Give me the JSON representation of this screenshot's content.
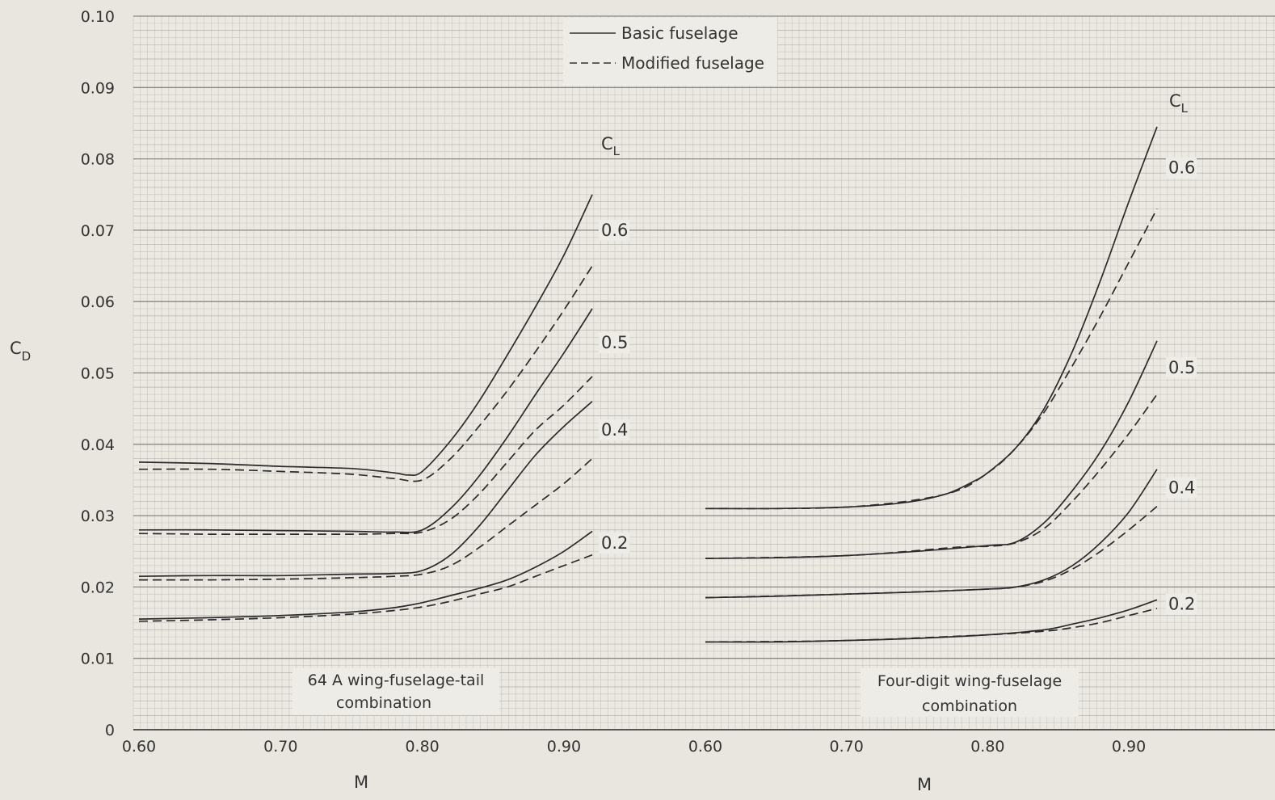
{
  "chart_data": {
    "type": "line",
    "y_axis": {
      "label": "C",
      "label_sub": "D",
      "ylim": [
        0,
        0.1
      ],
      "ticks": [
        "0",
        "0.01",
        "0.02",
        "0.03",
        "0.04",
        "0.05",
        "0.06",
        "0.07",
        "0.08",
        "0.09",
        "0.10"
      ]
    },
    "legend": {
      "placement": "top-center",
      "entries": [
        {
          "label": "Basic  fuselage",
          "style": "solid"
        },
        {
          "label": "Modified  fuselage",
          "style": "dashed"
        }
      ]
    },
    "grid": true,
    "panels": [
      {
        "caption_line1": "64 A  wing-fuselage-tail",
        "caption_line2": "combination",
        "xlabel": "M",
        "xlim": [
          0.6,
          0.92
        ],
        "x_ticks": [
          "0.60",
          "0.70",
          "0.80",
          "0.90"
        ],
        "cl_header": "C",
        "cl_header_sub": "L",
        "series": [
          {
            "cl": "0.6",
            "style": "solid",
            "points": [
              [
                0.6,
                0.0375
              ],
              [
                0.65,
                0.0373
              ],
              [
                0.7,
                0.0369
              ],
              [
                0.75,
                0.0366
              ],
              [
                0.78,
                0.036
              ],
              [
                0.79,
                0.0357
              ],
              [
                0.8,
                0.0362
              ],
              [
                0.82,
                0.0405
              ],
              [
                0.84,
                0.046
              ],
              [
                0.86,
                0.0525
              ],
              [
                0.88,
                0.0593
              ],
              [
                0.9,
                0.0665
              ],
              [
                0.92,
                0.075
              ]
            ]
          },
          {
            "cl": "0.6",
            "style": "dashed",
            "points": [
              [
                0.6,
                0.0365
              ],
              [
                0.65,
                0.0365
              ],
              [
                0.7,
                0.0362
              ],
              [
                0.75,
                0.0358
              ],
              [
                0.78,
                0.0352
              ],
              [
                0.8,
                0.035
              ],
              [
                0.82,
                0.038
              ],
              [
                0.84,
                0.0425
              ],
              [
                0.86,
                0.0475
              ],
              [
                0.88,
                0.053
              ],
              [
                0.9,
                0.0588
              ],
              [
                0.92,
                0.065
              ]
            ]
          },
          {
            "cl": "0.5",
            "style": "solid",
            "points": [
              [
                0.6,
                0.028
              ],
              [
                0.65,
                0.028
              ],
              [
                0.7,
                0.0279
              ],
              [
                0.75,
                0.0278
              ],
              [
                0.78,
                0.0277
              ],
              [
                0.8,
                0.028
              ],
              [
                0.82,
                0.031
              ],
              [
                0.84,
                0.0355
              ],
              [
                0.86,
                0.041
              ],
              [
                0.88,
                0.047
              ],
              [
                0.9,
                0.0528
              ],
              [
                0.92,
                0.059
              ]
            ]
          },
          {
            "cl": "0.5",
            "style": "dashed",
            "points": [
              [
                0.6,
                0.0275
              ],
              [
                0.65,
                0.0274
              ],
              [
                0.7,
                0.0274
              ],
              [
                0.75,
                0.0274
              ],
              [
                0.78,
                0.0275
              ],
              [
                0.8,
                0.0277
              ],
              [
                0.82,
                0.0295
              ],
              [
                0.84,
                0.033
              ],
              [
                0.86,
                0.0375
              ],
              [
                0.88,
                0.042
              ],
              [
                0.9,
                0.0455
              ],
              [
                0.92,
                0.0495
              ]
            ]
          },
          {
            "cl": "0.4",
            "style": "solid",
            "points": [
              [
                0.6,
                0.0215
              ],
              [
                0.65,
                0.0216
              ],
              [
                0.7,
                0.0216
              ],
              [
                0.75,
                0.0218
              ],
              [
                0.78,
                0.0219
              ],
              [
                0.8,
                0.0223
              ],
              [
                0.82,
                0.0245
              ],
              [
                0.84,
                0.0285
              ],
              [
                0.86,
                0.0335
              ],
              [
                0.88,
                0.0385
              ],
              [
                0.9,
                0.0425
              ],
              [
                0.92,
                0.046
              ]
            ]
          },
          {
            "cl": "0.4",
            "style": "dashed",
            "points": [
              [
                0.6,
                0.021
              ],
              [
                0.65,
                0.021
              ],
              [
                0.7,
                0.0211
              ],
              [
                0.75,
                0.0213
              ],
              [
                0.78,
                0.0215
              ],
              [
                0.8,
                0.0218
              ],
              [
                0.82,
                0.023
              ],
              [
                0.84,
                0.0255
              ],
              [
                0.86,
                0.0285
              ],
              [
                0.88,
                0.0315
              ],
              [
                0.9,
                0.0345
              ],
              [
                0.92,
                0.038
              ]
            ]
          },
          {
            "cl": "0.2",
            "style": "solid",
            "points": [
              [
                0.6,
                0.0155
              ],
              [
                0.65,
                0.0157
              ],
              [
                0.7,
                0.016
              ],
              [
                0.75,
                0.0165
              ],
              [
                0.78,
                0.0171
              ],
              [
                0.8,
                0.0178
              ],
              [
                0.82,
                0.0188
              ],
              [
                0.84,
                0.0198
              ],
              [
                0.86,
                0.021
              ],
              [
                0.88,
                0.0228
              ],
              [
                0.9,
                0.025
              ],
              [
                0.92,
                0.0278
              ]
            ]
          },
          {
            "cl": "0.2",
            "style": "dashed",
            "points": [
              [
                0.6,
                0.0152
              ],
              [
                0.65,
                0.0154
              ],
              [
                0.7,
                0.0157
              ],
              [
                0.75,
                0.0162
              ],
              [
                0.78,
                0.0167
              ],
              [
                0.8,
                0.0172
              ],
              [
                0.82,
                0.018
              ],
              [
                0.84,
                0.019
              ],
              [
                0.86,
                0.02
              ],
              [
                0.88,
                0.0215
              ],
              [
                0.9,
                0.023
              ],
              [
                0.92,
                0.0245
              ]
            ]
          }
        ]
      },
      {
        "caption_line1": "Four-digit  wing-fuselage",
        "caption_line2": "combination",
        "xlabel": "M",
        "xlim": [
          0.6,
          0.92
        ],
        "x_ticks": [
          "0.60",
          "0.70",
          "0.80",
          "0.90"
        ],
        "cl_header": "C",
        "cl_header_sub": "L",
        "series": [
          {
            "cl": "0.6",
            "style": "solid",
            "points": [
              [
                0.6,
                0.031
              ],
              [
                0.65,
                0.031
              ],
              [
                0.7,
                0.0312
              ],
              [
                0.74,
                0.0318
              ],
              [
                0.77,
                0.033
              ],
              [
                0.79,
                0.0348
              ],
              [
                0.8,
                0.036
              ],
              [
                0.82,
                0.0395
              ],
              [
                0.84,
                0.045
              ],
              [
                0.86,
                0.053
              ],
              [
                0.88,
                0.063
              ],
              [
                0.9,
                0.074
              ],
              [
                0.92,
                0.0845
              ]
            ]
          },
          {
            "cl": "0.6",
            "style": "dashed",
            "points": [
              [
                0.6,
                0.031
              ],
              [
                0.7,
                0.0312
              ],
              [
                0.77,
                0.033
              ],
              [
                0.8,
                0.036
              ],
              [
                0.82,
                0.0395
              ],
              [
                0.84,
                0.0445
              ],
              [
                0.86,
                0.051
              ],
              [
                0.88,
                0.058
              ],
              [
                0.9,
                0.0655
              ],
              [
                0.92,
                0.073
              ]
            ]
          },
          {
            "cl": "0.5",
            "style": "solid",
            "points": [
              [
                0.6,
                0.024
              ],
              [
                0.65,
                0.0241
              ],
              [
                0.7,
                0.0244
              ],
              [
                0.75,
                0.025
              ],
              [
                0.8,
                0.0258
              ],
              [
                0.82,
                0.0263
              ],
              [
                0.84,
                0.029
              ],
              [
                0.86,
                0.0335
              ],
              [
                0.88,
                0.039
              ],
              [
                0.9,
                0.046
              ],
              [
                0.92,
                0.0545
              ]
            ]
          },
          {
            "cl": "0.5",
            "style": "dashed",
            "points": [
              [
                0.6,
                0.024
              ],
              [
                0.7,
                0.0244
              ],
              [
                0.78,
                0.0256
              ],
              [
                0.8,
                0.0257
              ],
              [
                0.82,
                0.0262
              ],
              [
                0.84,
                0.0282
              ],
              [
                0.86,
                0.032
              ],
              [
                0.88,
                0.0365
              ],
              [
                0.9,
                0.0415
              ],
              [
                0.92,
                0.047
              ]
            ]
          },
          {
            "cl": "0.4",
            "style": "solid",
            "points": [
              [
                0.6,
                0.0185
              ],
              [
                0.65,
                0.0187
              ],
              [
                0.7,
                0.019
              ],
              [
                0.75,
                0.0193
              ],
              [
                0.8,
                0.0197
              ],
              [
                0.82,
                0.02
              ],
              [
                0.84,
                0.021
              ],
              [
                0.86,
                0.023
              ],
              [
                0.88,
                0.0262
              ],
              [
                0.9,
                0.0305
              ],
              [
                0.92,
                0.0365
              ]
            ]
          },
          {
            "cl": "0.4",
            "style": "dashed",
            "points": [
              [
                0.6,
                0.0185
              ],
              [
                0.7,
                0.019
              ],
              [
                0.8,
                0.0197
              ],
              [
                0.82,
                0.02
              ],
              [
                0.84,
                0.0208
              ],
              [
                0.86,
                0.0225
              ],
              [
                0.88,
                0.025
              ],
              [
                0.9,
                0.028
              ],
              [
                0.92,
                0.0313
              ]
            ]
          },
          {
            "cl": "0.2",
            "style": "solid",
            "points": [
              [
                0.6,
                0.0123
              ],
              [
                0.65,
                0.0123
              ],
              [
                0.7,
                0.0125
              ],
              [
                0.75,
                0.0128
              ],
              [
                0.8,
                0.0133
              ],
              [
                0.84,
                0.014
              ],
              [
                0.86,
                0.0148
              ],
              [
                0.88,
                0.0157
              ],
              [
                0.9,
                0.0168
              ],
              [
                0.92,
                0.0182
              ]
            ]
          },
          {
            "cl": "0.2",
            "style": "dashed",
            "points": [
              [
                0.6,
                0.0123
              ],
              [
                0.7,
                0.0125
              ],
              [
                0.8,
                0.0133
              ],
              [
                0.84,
                0.0138
              ],
              [
                0.86,
                0.0143
              ],
              [
                0.88,
                0.015
              ],
              [
                0.9,
                0.016
              ],
              [
                0.92,
                0.017
              ]
            ]
          }
        ]
      }
    ]
  }
}
